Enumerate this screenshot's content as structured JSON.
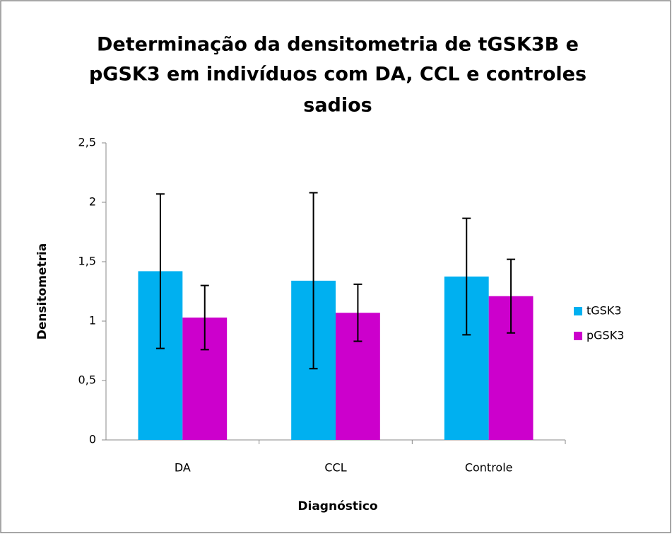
{
  "chart_data": {
    "type": "bar",
    "title": [
      "Determinação da densitometria de tGSK3B e",
      "pGSK3 em indivíduos com DA, CCL e controles",
      "sadios"
    ],
    "x_label": "Diagnóstico",
    "y_label": "Densitometria",
    "categories": [
      "DA",
      "CCL",
      "Controle"
    ],
    "series": [
      {
        "name": "tGSK3",
        "color": "#00b0f0",
        "values": [
          1.42,
          1.34,
          1.375
        ],
        "errors": [
          0.65,
          0.74,
          0.49
        ]
      },
      {
        "name": "pGSK3",
        "color": "#cc00cc",
        "values": [
          1.03,
          1.07,
          1.21
        ],
        "errors": [
          0.27,
          0.24,
          0.31
        ]
      }
    ],
    "ylim": [
      0,
      2.5
    ],
    "yticks": [
      0,
      {
        "value": 0.5,
        "label": "0,5"
      },
      1,
      {
        "value": 1.5,
        "label": "1,5"
      },
      2,
      {
        "value": 2.5,
        "label": "2,5"
      }
    ],
    "grid": false,
    "legend": "right"
  }
}
